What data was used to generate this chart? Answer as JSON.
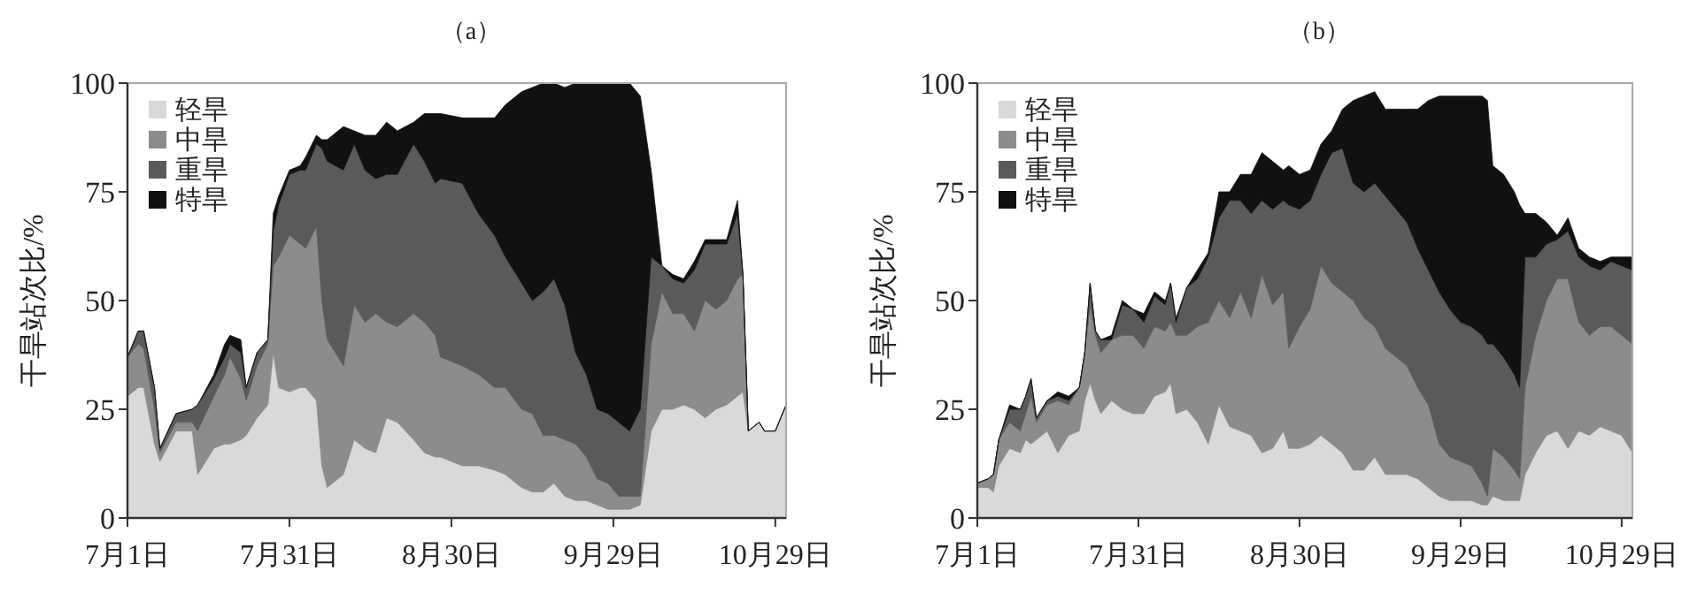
{
  "chart_data": [
    {
      "type": "area",
      "stacked": true,
      "title": "（a）",
      "ylabel": "干旱站次比/%",
      "legend": "top left",
      "xlim": [
        "--07-01",
        "--10-31"
      ],
      "ylim": [
        0,
        100
      ],
      "yticks": [
        0,
        25,
        50,
        75,
        100
      ],
      "xticks": [
        {
          "value": "--07-01",
          "label": "7月1日"
        },
        {
          "value": "--07-31",
          "label": "7月31日"
        },
        {
          "value": "--08-30",
          "label": "8月30日"
        },
        {
          "value": "--09-29",
          "label": "9月29日"
        },
        {
          "value": "--10-29",
          "label": "10月29日"
        }
      ],
      "x": [
        "--07-01",
        "--07-03",
        "--07-04",
        "--07-06",
        "--07-07",
        "--07-10",
        "--07-13",
        "--07-14",
        "--07-17",
        "--07-19",
        "--07-20",
        "--07-22",
        "--07-23",
        "--07-25",
        "--07-27",
        "--07-28",
        "--07-29",
        "--07-31",
        "--08-02",
        "--08-03",
        "--08-05",
        "--08-06",
        "--08-07",
        "--08-10",
        "--08-12",
        "--08-14",
        "--08-16",
        "--08-18",
        "--08-20",
        "--08-23",
        "--08-25",
        "--08-27",
        "--08-28",
        "--09-01",
        "--09-04",
        "--09-07",
        "--09-09",
        "--09-12",
        "--09-14",
        "--09-16",
        "--09-18",
        "--09-20",
        "--09-22",
        "--09-24",
        "--09-26",
        "--09-28",
        "--09-30",
        "--10-02",
        "--10-04",
        "--10-06",
        "--10-08",
        "--10-10",
        "--10-12",
        "--10-14",
        "--10-16",
        "--10-18",
        "--10-20",
        "--10-22",
        "--10-23",
        "--10-24",
        "--10-26",
        "--10-27",
        "--10-29",
        "--10-31"
      ],
      "series": [
        {
          "name": "轻旱",
          "color": "#d9d9d9",
          "values": [
            28,
            30,
            30,
            17,
            13,
            20,
            20,
            10,
            16,
            17,
            17,
            18,
            19,
            23,
            26,
            38,
            30,
            29,
            30,
            30,
            27,
            12,
            7,
            10,
            18,
            16,
            15,
            23,
            22,
            18,
            15,
            14,
            14,
            12,
            12,
            11,
            10,
            7,
            6,
            6,
            8,
            5,
            4,
            4,
            3,
            2,
            2,
            2,
            3,
            20,
            25,
            25,
            26,
            25,
            23,
            25,
            26,
            28,
            29,
            20,
            22,
            20,
            20,
            26
          ]
        },
        {
          "name": "中旱",
          "color": "#8c8c8c",
          "values": [
            9,
            10,
            9,
            8,
            2,
            2,
            2,
            10,
            12,
            16,
            20,
            14,
            8,
            12,
            14,
            20,
            30,
            36,
            33,
            32,
            40,
            38,
            34,
            25,
            31,
            29,
            32,
            22,
            22,
            29,
            30,
            28,
            23,
            23,
            21,
            19,
            20,
            18,
            18,
            13,
            11,
            13,
            13,
            10,
            6,
            6,
            3,
            3,
            2,
            20,
            27,
            22,
            21,
            18,
            27,
            23,
            24,
            27,
            27,
            0,
            0,
            0,
            0,
            0
          ]
        },
        {
          "name": "重旱",
          "color": "#5a5a5a",
          "values": [
            0,
            3,
            4,
            5,
            1,
            2,
            3,
            6,
            4,
            4,
            3,
            6,
            3,
            3,
            1,
            8,
            12,
            14,
            17,
            18,
            19,
            35,
            41,
            45,
            37,
            35,
            31,
            34,
            35,
            39,
            37,
            35,
            41,
            42,
            37,
            35,
            30,
            29,
            26,
            33,
            36,
            31,
            21,
            19,
            16,
            16,
            17,
            15,
            20,
            20,
            6,
            8,
            7,
            14,
            13,
            15,
            13,
            15,
            0,
            0,
            0,
            0,
            0,
            0
          ]
        },
        {
          "name": "特旱",
          "color": "#111111",
          "values": [
            0,
            0,
            0,
            0,
            0,
            0,
            0,
            0,
            1,
            3,
            2,
            3,
            0,
            0,
            0,
            4,
            2,
            1,
            1,
            3,
            2,
            2,
            5,
            10,
            3,
            8,
            10,
            12,
            10,
            5,
            11,
            16,
            15,
            15,
            22,
            27,
            35,
            44,
            49,
            48,
            45,
            50,
            62,
            67,
            75,
            76,
            78,
            80,
            72,
            20,
            0,
            1,
            1,
            2,
            1,
            1,
            1,
            3,
            0,
            0,
            0,
            0,
            0,
            0
          ]
        }
      ]
    },
    {
      "type": "area",
      "stacked": true,
      "title": "（b）",
      "ylabel": "干旱站次比/%",
      "legend": "top left",
      "xlim": [
        "--07-01",
        "--10-31"
      ],
      "ylim": [
        0,
        100
      ],
      "yticks": [
        0,
        25,
        50,
        75,
        100
      ],
      "xticks": [
        {
          "value": "--07-01",
          "label": "7月1日"
        },
        {
          "value": "--07-31",
          "label": "7月31日"
        },
        {
          "value": "--08-30",
          "label": "8月30日"
        },
        {
          "value": "--09-29",
          "label": "9月29日"
        },
        {
          "value": "--10-29",
          "label": "10月29日"
        }
      ],
      "x": [
        "--07-01",
        "--07-03",
        "--07-04",
        "--07-05",
        "--07-07",
        "--07-09",
        "--07-10",
        "--07-11",
        "--07-12",
        "--07-14",
        "--07-16",
        "--07-18",
        "--07-20",
        "--07-21",
        "--07-22",
        "--07-23",
        "--07-24",
        "--07-26",
        "--07-28",
        "--07-30",
        "--08-01",
        "--08-03",
        "--08-05",
        "--08-06",
        "--08-07",
        "--08-09",
        "--08-11",
        "--08-13",
        "--08-15",
        "--08-17",
        "--08-19",
        "--08-21",
        "--08-23",
        "--08-25",
        "--08-27",
        "--08-28",
        "--08-30",
        "--09-01",
        "--09-03",
        "--09-05",
        "--09-07",
        "--09-09",
        "--09-11",
        "--09-13",
        "--09-15",
        "--09-17",
        "--09-19",
        "--09-21",
        "--09-23",
        "--09-25",
        "--09-27",
        "--09-29",
        "--10-01",
        "--10-03",
        "--10-04",
        "--10-05",
        "--10-07",
        "--10-09",
        "--10-10",
        "--10-11",
        "--10-13",
        "--10-15",
        "--10-17",
        "--10-19",
        "--10-21",
        "--10-23",
        "--10-25",
        "--10-27",
        "--10-29",
        "--10-31"
      ],
      "series": [
        {
          "name": "轻旱",
          "color": "#d9d9d9",
          "values": [
            7,
            7,
            6,
            12,
            16,
            15,
            18,
            17,
            18,
            20,
            15,
            19,
            20,
            27,
            31,
            27,
            24,
            27,
            25,
            24,
            24,
            28,
            29,
            31,
            24,
            25,
            22,
            17,
            26,
            21,
            20,
            19,
            15,
            16,
            20,
            16,
            16,
            17,
            19,
            17,
            15,
            11,
            11,
            14,
            10,
            10,
            10,
            9,
            7,
            5,
            4,
            4,
            4,
            3,
            3,
            5,
            4,
            4,
            4,
            10,
            15,
            19,
            20,
            16,
            20,
            19,
            21,
            20,
            19,
            15
          ]
        },
        {
          "name": "中旱",
          "color": "#8c8c8c",
          "values": [
            1,
            2,
            4,
            6,
            6,
            5,
            6,
            11,
            4,
            6,
            12,
            7,
            10,
            11,
            18,
            15,
            14,
            14,
            17,
            18,
            15,
            16,
            14,
            14,
            18,
            17,
            22,
            28,
            24,
            25,
            32,
            27,
            41,
            33,
            32,
            23,
            28,
            31,
            39,
            37,
            37,
            39,
            35,
            30,
            29,
            27,
            25,
            21,
            19,
            12,
            10,
            9,
            8,
            5,
            2,
            11,
            10,
            7,
            5,
            20,
            27,
            31,
            35,
            39,
            25,
            23,
            23,
            24,
            23,
            25
          ]
        },
        {
          "name": "重旱",
          "color": "#5a5a5a",
          "values": [
            0,
            0,
            0,
            0,
            3,
            5,
            4,
            4,
            1,
            1,
            1,
            1,
            0,
            0,
            5,
            1,
            3,
            0,
            7,
            6,
            6,
            7,
            6,
            9,
            3,
            11,
            11,
            15,
            19,
            27,
            21,
            24,
            17,
            22,
            21,
            33,
            27,
            25,
            21,
            30,
            33,
            27,
            29,
            33,
            35,
            34,
            33,
            32,
            31,
            35,
            34,
            32,
            32,
            34,
            35,
            24,
            23,
            22,
            21,
            30,
            18,
            13,
            9,
            11,
            15,
            16,
            13,
            15,
            16,
            17
          ]
        },
        {
          "name": "特旱",
          "color": "#111111",
          "values": [
            0,
            0,
            0,
            0,
            1,
            0,
            0,
            0,
            0,
            0,
            1,
            1,
            0,
            0,
            0,
            0,
            0,
            1,
            1,
            0,
            2,
            1,
            1,
            0,
            1,
            0,
            2,
            1,
            6,
            2,
            6,
            9,
            11,
            11,
            7,
            9,
            8,
            7,
            7,
            5,
            9,
            19,
            22,
            21,
            20,
            23,
            26,
            32,
            39,
            45,
            49,
            52,
            53,
            55,
            56,
            41,
            42,
            42,
            42,
            10,
            10,
            5,
            1,
            3,
            2,
            2,
            2,
            1,
            2,
            3
          ]
        }
      ]
    }
  ]
}
